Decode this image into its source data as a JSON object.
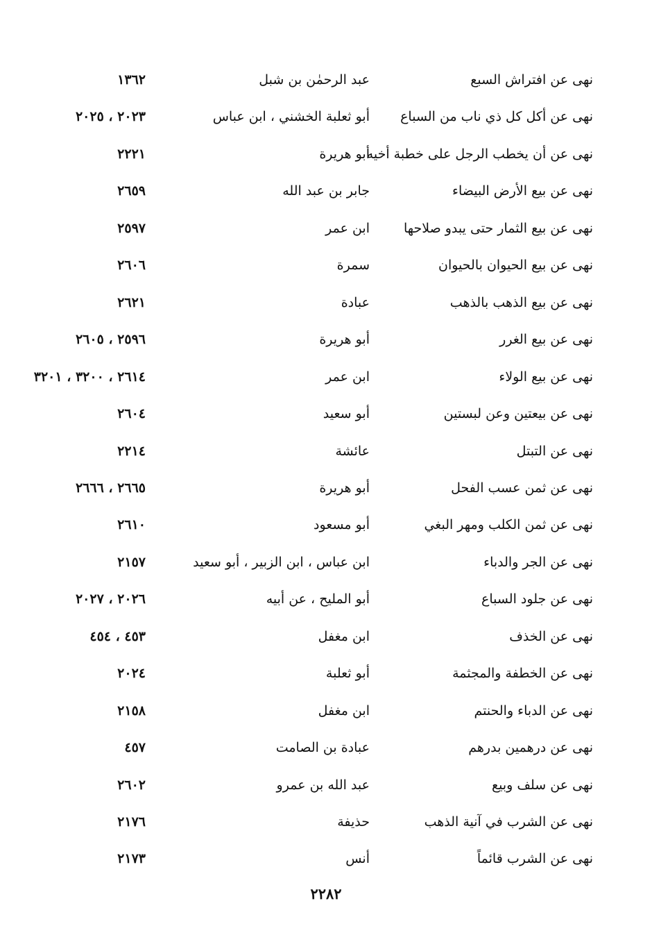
{
  "rows": [
    {
      "topic": "نهى عن افتراش السبع",
      "narrator": "عبد الرحمٰن بن شبل",
      "numbers": "١٣٦٢"
    },
    {
      "topic": "نهى عن أكل كل ذي ناب من السباع",
      "narrator": "أبو ثعلبة الخشني ، ابن عباس",
      "numbers": "٢٠٢٣ ، ٢٠٢٥"
    },
    {
      "topic": "نهى عن أن يخطب الرجل على خطبة أخيه",
      "narrator": "أبو هريرة",
      "numbers": "٢٢٢١"
    },
    {
      "topic": "نهى عن بيع الأرض البيضاء",
      "narrator": "جابر بن عبد الله",
      "numbers": "٢٦٥٩"
    },
    {
      "topic": "نهى عن بيع الثمار حتى يبدو صلاحها",
      "narrator": "ابن عمر",
      "numbers": "٢٥٩٧"
    },
    {
      "topic": "نهى عن بيع الحيوان بالحيوان",
      "narrator": "سمرة",
      "numbers": "٢٦٠٦"
    },
    {
      "topic": "نهى عن بيع الذهب بالذهب",
      "narrator": "عبادة",
      "numbers": "٢٦٢١"
    },
    {
      "topic": "نهى عن بيع الغرر",
      "narrator": "أبو هريرة",
      "numbers": "٢٥٩٦ ، ٢٦٠٥"
    },
    {
      "topic": "نهى عن بيع الولاء",
      "narrator": "ابن عمر",
      "numbers": "٢٦١٤ ، ٣٢٠٠ ، ٣٢٠١"
    },
    {
      "topic": "نهى عن بيعتين وعن لبستين",
      "narrator": "أبو سعيد",
      "numbers": "٢٦٠٤"
    },
    {
      "topic": "نهى عن التبتل",
      "narrator": "عائشة",
      "numbers": "٢٢١٤"
    },
    {
      "topic": "نهى عن ثمن عسب الفحل",
      "narrator": "أبو هريرة",
      "numbers": "٢٦٦٥ ، ٢٦٦٦"
    },
    {
      "topic": "نهى عن ثمن الكلب ومهر البغي",
      "narrator": "أبو مسعود",
      "numbers": "٢٦١٠"
    },
    {
      "topic": "نهى عن الجر والدباء",
      "narrator": "ابن عباس ، ابن الزبير ، أبو سعيد",
      "numbers": "٢١٥٧"
    },
    {
      "topic": "نهى عن جلود السباع",
      "narrator": "أبو المليح ، عن أبيه",
      "numbers": "٢٠٢٦ ، ٢٠٢٧"
    },
    {
      "topic": "نهى عن الخذف",
      "narrator": "ابن مغفل",
      "numbers": "٤٥٣ ، ٤٥٤"
    },
    {
      "topic": "نهى عن الخطفة والمجثمة",
      "narrator": "أبو ثعلبة",
      "numbers": "٢٠٢٤"
    },
    {
      "topic": "نهى عن الدباء والحنتم",
      "narrator": "ابن مغفل",
      "numbers": "٢١٥٨"
    },
    {
      "topic": "نهى عن درهمين بدرهم",
      "narrator": "عبادة بن الصامت",
      "numbers": "٤٥٧"
    },
    {
      "topic": "نهى عن سلف وبيع",
      "narrator": "عبد الله بن عمرو",
      "numbers": "٢٦٠٢"
    },
    {
      "topic": "نهى عن الشرب في آنية الذهب",
      "narrator": "حذيفة",
      "numbers": "٢١٧٦"
    },
    {
      "topic": "نهى عن الشرب قائماً",
      "narrator": "أنس",
      "numbers": "٢١٧٣"
    }
  ],
  "page_number": "٢٢٨٢"
}
